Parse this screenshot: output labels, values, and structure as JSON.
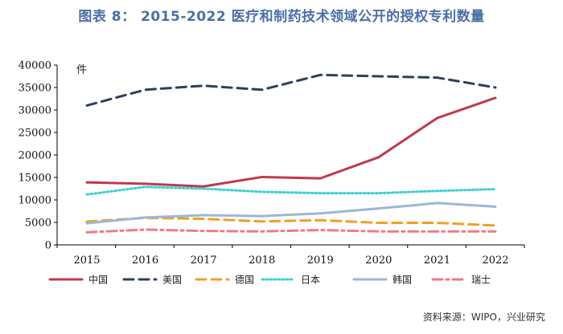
{
  "title": "图表 8： 2015-2022 医疗和制药技术领域公开的授权专利数量",
  "source": "资料来源：WIPO，兴业研究",
  "chart_data": {
    "type": "line",
    "title": "图表 8： 2015-2022 医疗和制药技术领域公开的授权专利数量",
    "unit_label": "件",
    "x": [
      "2015",
      "2016",
      "2017",
      "2018",
      "2019",
      "2020",
      "2021",
      "2022"
    ],
    "ylim": [
      0,
      40000
    ],
    "yticks": [
      0,
      5000,
      10000,
      15000,
      20000,
      25000,
      30000,
      35000,
      40000
    ],
    "grid": false,
    "legend_position": "bottom",
    "series": [
      {
        "name": "中国",
        "color": "#c0394b",
        "dash": "solid",
        "values": [
          13900,
          13600,
          13000,
          15100,
          14800,
          19500,
          28200,
          32700
        ]
      },
      {
        "name": "美国",
        "color": "#2e3f5c",
        "dash": "dashed",
        "values": [
          31000,
          34500,
          35400,
          34500,
          37800,
          37500,
          37200,
          35000
        ]
      },
      {
        "name": "德国",
        "color": "#f0a020",
        "dash": "dashed",
        "values": [
          5200,
          6000,
          5800,
          5200,
          5500,
          4900,
          4900,
          4300
        ]
      },
      {
        "name": "日本",
        "color": "#3fd0d0",
        "dash": "dotted",
        "values": [
          11200,
          12900,
          12500,
          11800,
          11500,
          11500,
          12000,
          12400
        ]
      },
      {
        "name": "韩国",
        "color": "#9ab8d8",
        "dash": "solid",
        "values": [
          4800,
          6100,
          6600,
          6400,
          7000,
          8100,
          9300,
          8500
        ]
      },
      {
        "name": "瑞士",
        "color": "#f07a8a",
        "dash": "dashdot",
        "values": [
          2800,
          3400,
          3100,
          3000,
          3300,
          3000,
          3000,
          3000
        ]
      }
    ]
  }
}
